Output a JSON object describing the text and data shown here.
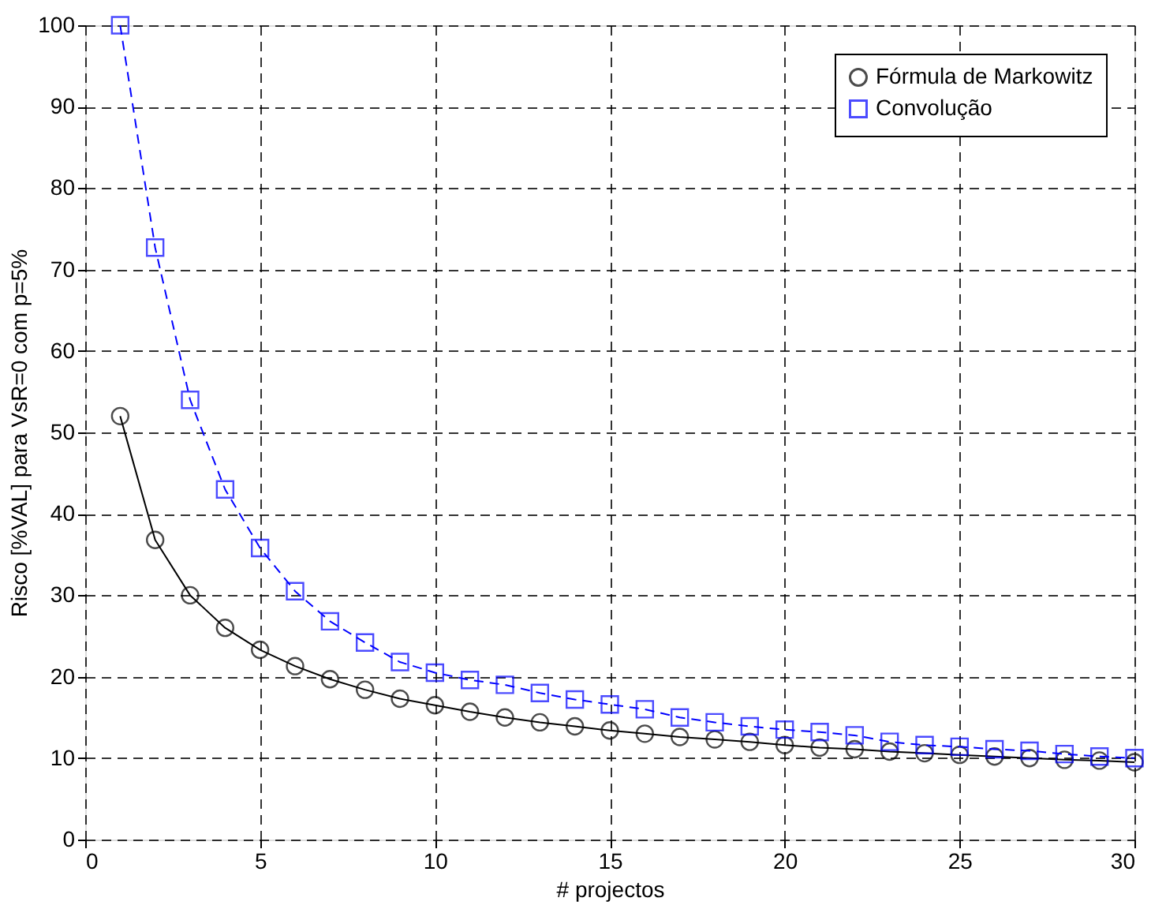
{
  "chart_data": {
    "type": "line",
    "xlabel": "# projectos",
    "ylabel": "Risco [%VAL] para VsR=0 com p=5%",
    "x": [
      1,
      2,
      3,
      4,
      5,
      6,
      7,
      8,
      9,
      10,
      11,
      12,
      13,
      14,
      15,
      16,
      17,
      18,
      19,
      20,
      21,
      22,
      23,
      24,
      25,
      26,
      27,
      28,
      29,
      30
    ],
    "series": [
      {
        "name": "Fórmula de Markowitz",
        "color": "#000000",
        "marker": "circle",
        "line_style": "solid",
        "values": [
          52,
          36.8,
          30,
          26,
          23.3,
          21.3,
          19.7,
          18.4,
          17.3,
          16.5,
          15.7,
          15,
          14.4,
          13.9,
          13.4,
          13,
          12.6,
          12.3,
          12,
          11.6,
          11.3,
          11.1,
          10.8,
          10.6,
          10.4,
          10.2,
          10,
          9.8,
          9.7,
          9.5
        ]
      },
      {
        "name": "Convolução",
        "color": "#0000ff",
        "marker": "square",
        "line_style": "dashed",
        "values": [
          100,
          72.7,
          54,
          43,
          35.8,
          30.5,
          26.8,
          24.2,
          21.8,
          20.5,
          19.6,
          19,
          18,
          17.2,
          16.6,
          16,
          15,
          14.4,
          13.9,
          13.5,
          13.2,
          12.8,
          12,
          11.6,
          11.4,
          11.1,
          10.9,
          10.5,
          10.2,
          10
        ]
      }
    ],
    "xlim": [
      0,
      30
    ],
    "xticks": [
      0,
      5,
      10,
      15,
      20,
      25,
      30
    ],
    "ylim": [
      0,
      100
    ],
    "yticks": [
      0,
      10,
      20,
      30,
      40,
      50,
      60,
      70,
      80,
      90,
      100
    ],
    "grid": true,
    "legend": "top right"
  }
}
